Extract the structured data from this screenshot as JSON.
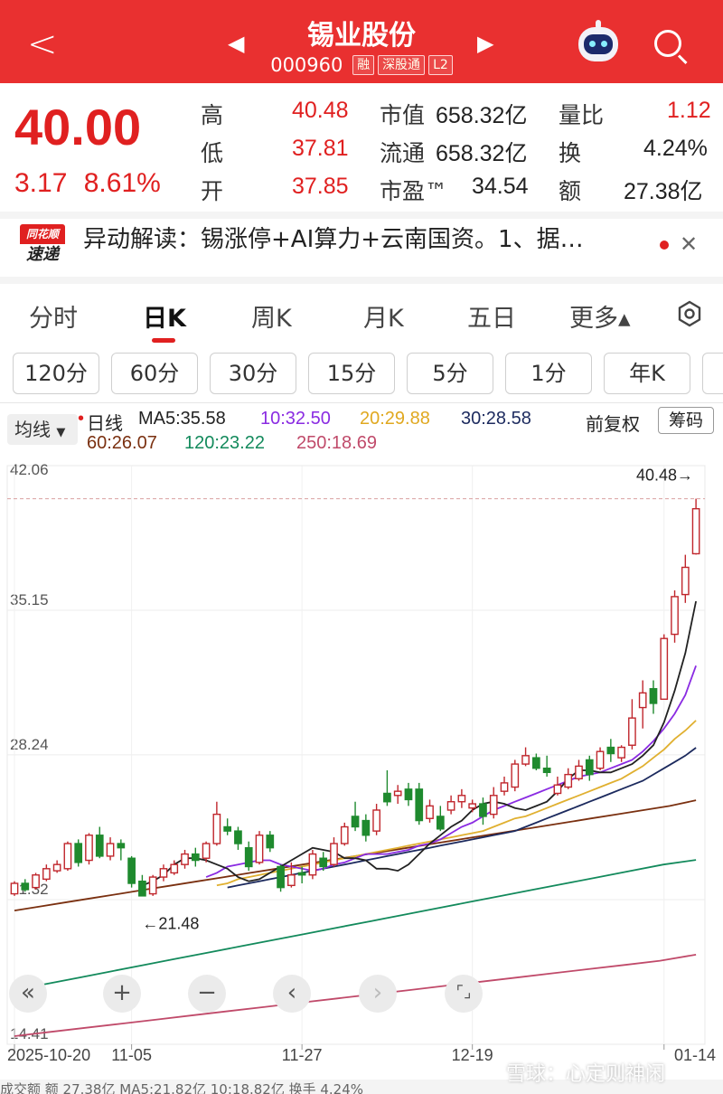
{
  "header": {
    "title": "锡业股份",
    "code": "000960",
    "tags": [
      "融",
      "深股通",
      "L2"
    ]
  },
  "quote": {
    "price": "40.00",
    "change": "3.17",
    "change_pct": "8.61%",
    "high_label": "高",
    "high": "40.48",
    "low_label": "低",
    "low": "37.81",
    "open_label": "开",
    "open": "37.85",
    "mcap_label": "市值",
    "mcap": "658.32亿",
    "float_label": "流通",
    "float": "658.32亿",
    "pe_label": "市盈™",
    "pe": "34.54",
    "vr_label": "量比",
    "vr": "1.12",
    "turn_label": "换",
    "turn": "4.24%",
    "amt_label": "额",
    "amt": "27.38亿"
  },
  "news": {
    "logo_top": "同花顺",
    "logo_bottom": "速递",
    "text": "异动解读：锡涨停+AI算力+云南国资。1、据…"
  },
  "tabs": [
    "分时",
    "日K",
    "周K",
    "月K",
    "五日",
    "更多▴"
  ],
  "periods": [
    "120分",
    "60分",
    "30分",
    "15分",
    "5分",
    "1分",
    "年K"
  ],
  "legend": {
    "selector": "均线",
    "line": "日线",
    "ma5": "MA5:35.58",
    "ma10": "10:32.50",
    "ma20": "20:29.88",
    "ma30": "30:28.58",
    "ma60": "60:26.07",
    "ma120": "120:23.22",
    "ma250": "250:18.69",
    "adjust": "前复权",
    "chips": "筹码"
  },
  "colors": {
    "up": "#c0262c",
    "down": "#1f8a2e",
    "ma5": "#222222",
    "ma10": "#8a2be2",
    "ma20": "#e0b030",
    "ma30": "#1c2a5e",
    "ma60": "#7a3010",
    "ma120": "#138a5c",
    "ma250": "#c04a6a"
  },
  "chart_data": {
    "type": "candlestick",
    "y_labels": [
      "42.06",
      "35.15",
      "28.24",
      "21.32",
      "14.41"
    ],
    "y_ticks": [
      42.06,
      35.15,
      28.24,
      21.32,
      14.41
    ],
    "x_labels": [
      "2025-10-20",
      "11-05",
      "11-27",
      "12-19",
      "01-14"
    ],
    "x_label_index": [
      0,
      11,
      27,
      43,
      61
    ],
    "annotations": {
      "max": "40.48→",
      "min": "←21.48"
    },
    "max_price": 40.48,
    "candles": [
      [
        21.6,
        22.1,
        21.5,
        22.2
      ],
      [
        22.1,
        21.8,
        21.7,
        22.3
      ],
      [
        21.9,
        22.5,
        21.8,
        22.6
      ],
      [
        22.3,
        22.8,
        22.2,
        23.0
      ],
      [
        22.7,
        23.0,
        22.6,
        23.2
      ],
      [
        22.8,
        24.0,
        22.7,
        24.1
      ],
      [
        24.0,
        23.1,
        22.9,
        24.2
      ],
      [
        23.2,
        24.4,
        23.0,
        24.5
      ],
      [
        24.4,
        23.4,
        23.3,
        24.8
      ],
      [
        23.4,
        24.0,
        23.2,
        24.3
      ],
      [
        24.0,
        23.8,
        23.2,
        24.2
      ],
      [
        23.3,
        22.1,
        21.9,
        23.4
      ],
      [
        22.2,
        21.5,
        21.48,
        22.5
      ],
      [
        21.6,
        22.4,
        21.5,
        22.5
      ],
      [
        22.4,
        22.8,
        22.2,
        23.0
      ],
      [
        22.6,
        23.0,
        22.5,
        23.2
      ],
      [
        23.0,
        23.5,
        22.8,
        23.7
      ],
      [
        23.5,
        23.2,
        22.9,
        23.8
      ],
      [
        23.3,
        24.0,
        23.1,
        24.1
      ],
      [
        24.0,
        25.4,
        23.9,
        26.0
      ],
      [
        24.8,
        24.6,
        24.4,
        25.2
      ],
      [
        24.6,
        24.0,
        23.7,
        24.8
      ],
      [
        23.8,
        22.9,
        22.7,
        24.1
      ],
      [
        23.1,
        24.4,
        23.0,
        24.6
      ],
      [
        24.4,
        23.8,
        23.6,
        24.6
      ],
      [
        22.9,
        21.9,
        21.7,
        23.0
      ],
      [
        22.0,
        22.5,
        21.9,
        23.1
      ],
      [
        22.6,
        22.5,
        22.1,
        22.9
      ],
      [
        22.5,
        23.5,
        22.3,
        23.7
      ],
      [
        23.3,
        22.9,
        22.7,
        23.6
      ],
      [
        23.0,
        24.0,
        22.9,
        24.3
      ],
      [
        24.0,
        24.8,
        23.9,
        25.0
      ],
      [
        25.3,
        24.8,
        24.6,
        26.0
      ],
      [
        25.1,
        24.4,
        24.1,
        25.4
      ],
      [
        24.6,
        25.6,
        24.4,
        25.9
      ],
      [
        26.4,
        26.0,
        25.8,
        27.5
      ],
      [
        26.3,
        26.5,
        25.9,
        26.8
      ],
      [
        26.6,
        26.1,
        25.8,
        26.9
      ],
      [
        26.6,
        25.1,
        24.9,
        26.9
      ],
      [
        25.2,
        25.8,
        25.0,
        26.1
      ],
      [
        25.3,
        24.7,
        24.6,
        25.8
      ],
      [
        25.6,
        26.0,
        25.4,
        26.3
      ],
      [
        26.0,
        26.3,
        25.7,
        26.6
      ],
      [
        25.7,
        25.9,
        25.5,
        26.1
      ],
      [
        25.9,
        25.3,
        24.9,
        26.2
      ],
      [
        25.4,
        26.3,
        25.2,
        26.7
      ],
      [
        26.5,
        26.9,
        26.3,
        27.2
      ],
      [
        26.7,
        27.8,
        26.5,
        28.0
      ],
      [
        27.8,
        28.2,
        27.7,
        28.6
      ],
      [
        28.1,
        27.6,
        27.5,
        28.3
      ],
      [
        27.6,
        27.4,
        27.2,
        28.2
      ],
      [
        26.4,
        26.8,
        26.3,
        27.2
      ],
      [
        26.7,
        27.3,
        26.6,
        27.6
      ],
      [
        27.1,
        27.7,
        27.0,
        28.0
      ],
      [
        28.0,
        27.3,
        27.0,
        28.2
      ],
      [
        27.6,
        28.4,
        27.5,
        28.6
      ],
      [
        28.6,
        28.3,
        27.9,
        29.0
      ],
      [
        28.1,
        28.6,
        27.9,
        28.7
      ],
      [
        28.7,
        30.0,
        28.5,
        30.9
      ],
      [
        30.5,
        31.2,
        29.5,
        31.8
      ],
      [
        31.4,
        30.7,
        30.2,
        31.8
      ],
      [
        30.9,
        33.8,
        30.9,
        34.0
      ],
      [
        34.0,
        35.8,
        33.6,
        36.1
      ],
      [
        35.9,
        37.2,
        35.5,
        37.8
      ],
      [
        37.85,
        40.0,
        37.81,
        40.48
      ]
    ],
    "ma": {
      "ma5": [
        22.0,
        22.2,
        22.5,
        23.0,
        23.3,
        23.3,
        23.2,
        23.0,
        22.8,
        22.4,
        22.2,
        22.3,
        22.6,
        22.9,
        23.2,
        23.5,
        23.8,
        23.7,
        23.6,
        23.3,
        23.3,
        23.2,
        22.8,
        22.8,
        22.7,
        23.0,
        23.5,
        24.0,
        24.4,
        24.8,
        25.1,
        25.6,
        25.9,
        26.0,
        25.9,
        25.7,
        25.6,
        25.8,
        26.0,
        26.5,
        27.1,
        27.5,
        27.5,
        27.4,
        27.4,
        27.6,
        27.8,
        28.2,
        28.7,
        29.8,
        31.3,
        33.1,
        35.58
      ],
      "ma5_start": 12,
      "ma10": [
        22.4,
        22.6,
        22.9,
        23.0,
        23.1,
        23.2,
        23.2,
        23.0,
        22.9,
        22.8,
        22.7,
        22.8,
        23.0,
        23.1,
        23.3,
        23.5,
        23.5,
        23.5,
        23.6,
        23.7,
        23.9,
        24.0,
        24.2,
        24.5,
        24.8,
        25.0,
        25.3,
        25.6,
        25.8,
        26.0,
        26.2,
        26.4,
        26.6,
        26.8,
        27.0,
        27.2,
        27.3,
        27.4,
        27.6,
        27.8,
        28.0,
        28.4,
        28.9,
        29.5,
        30.2,
        31.1,
        32.5
      ],
      "ma10_start": 18,
      "ma20": [
        22.0,
        22.1,
        22.3,
        22.4,
        22.5,
        22.6,
        22.7,
        22.8,
        22.9,
        23.0,
        23.1,
        23.2,
        23.3,
        23.4,
        23.5,
        23.6,
        23.7,
        23.8,
        23.9,
        24.0,
        24.1,
        24.2,
        24.3,
        24.4,
        24.5,
        24.6,
        24.8,
        25.0,
        25.2,
        25.3,
        25.5,
        25.7,
        25.9,
        26.1,
        26.3,
        26.5,
        26.7,
        26.9,
        27.1,
        27.4,
        27.7,
        28.1,
        28.5,
        29.0,
        29.4,
        29.88
      ],
      "ma20_start": 19,
      "ma30": [
        21.9,
        22.0,
        22.1,
        22.2,
        22.3,
        22.4,
        22.5,
        22.6,
        22.7,
        22.8,
        22.9,
        23.0,
        23.1,
        23.2,
        23.3,
        23.4,
        23.5,
        23.6,
        23.7,
        23.8,
        23.9,
        24.0,
        24.1,
        24.2,
        24.3,
        24.4,
        24.5,
        24.6,
        24.8,
        25.0,
        25.2,
        25.4,
        25.6,
        25.8,
        26.0,
        26.2,
        26.4,
        26.6,
        26.8,
        27.0,
        27.3,
        27.6,
        27.9,
        28.2,
        28.58
      ],
      "ma30_start": 20,
      "ma60": [
        20.8,
        21.0,
        21.2,
        21.4,
        21.6,
        21.8,
        22.0,
        22.2,
        22.4,
        22.6,
        22.8,
        23.0,
        23.2,
        23.4,
        23.6,
        23.8,
        24.0,
        24.2,
        24.4,
        24.6,
        24.8,
        25.0,
        25.2,
        25.4,
        25.6,
        25.8,
        26.07
      ],
      "ma60_start": 0,
      "ma120": [
        17.0,
        17.3,
        17.6,
        17.9,
        18.2,
        18.5,
        18.8,
        19.1,
        19.4,
        19.7,
        20.0,
        20.3,
        20.6,
        20.9,
        21.2,
        21.5,
        21.8,
        22.1,
        22.4,
        22.7,
        23.0,
        23.22
      ],
      "ma120_start": 0,
      "ma250": [
        14.8,
        15.0,
        15.2,
        15.4,
        15.6,
        15.8,
        16.0,
        16.2,
        16.4,
        16.6,
        16.8,
        17.0,
        17.2,
        17.4,
        17.6,
        17.8,
        18.0,
        18.2,
        18.4,
        18.69
      ],
      "ma250_start": 0
    }
  },
  "controls": [
    "«",
    "+",
    "−",
    "‹",
    "›",
    "⌜⌟"
  ],
  "bottom": {
    "text": "成交额  额 27.38亿  MA5:21.82亿  10:18.82亿  换手 4.24%",
    "watermark": "雪球：心定则神闲"
  }
}
